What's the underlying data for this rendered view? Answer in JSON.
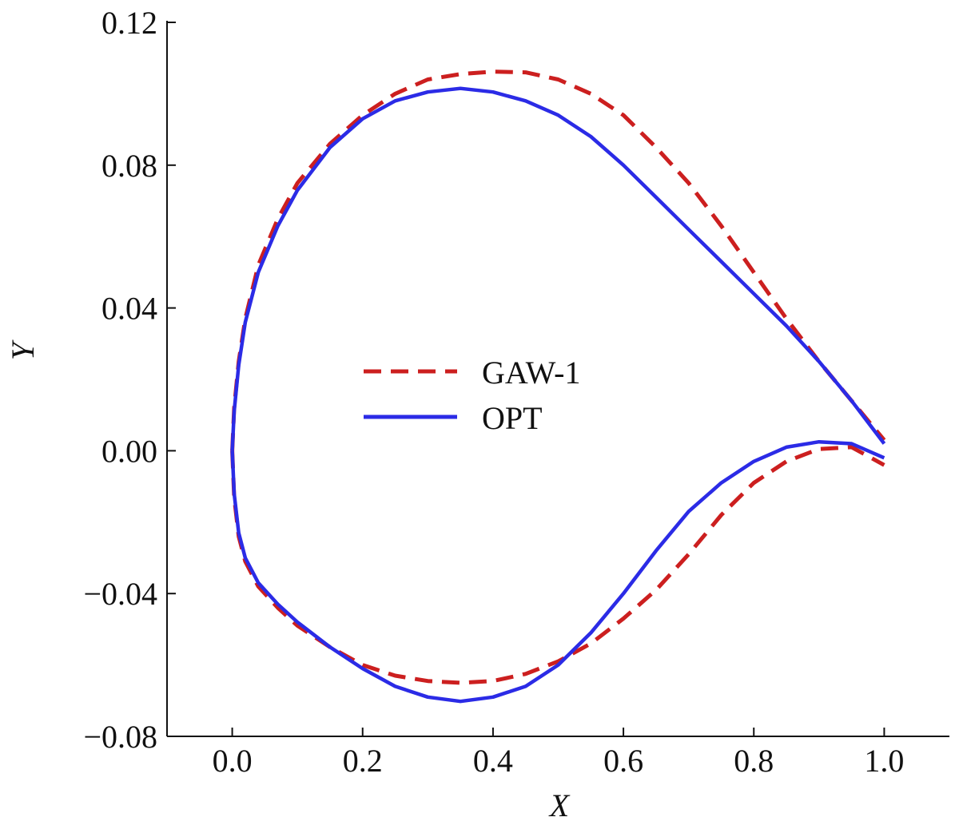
{
  "chart_data": {
    "type": "line",
    "title": "",
    "xlabel": "X",
    "ylabel": "Y",
    "xlim": [
      -0.1,
      1.1
    ],
    "ylim": [
      -0.08,
      0.12
    ],
    "grid": false,
    "legend_position": "center",
    "x_ticks": [
      0.0,
      0.2,
      0.4,
      0.6,
      0.8,
      1.0
    ],
    "x_tick_labels": [
      "0.0",
      "0.2",
      "0.4",
      "0.6",
      "0.8",
      "1.0"
    ],
    "y_ticks": [
      -0.08,
      -0.04,
      0.0,
      0.04,
      0.08,
      0.12
    ],
    "y_tick_labels": [
      "−0.08",
      "−0.04",
      "0.00",
      "0.04",
      "0.08",
      "0.12"
    ],
    "series": [
      {
        "name": "GAW-1",
        "color": "#cc1f1f",
        "style": "dashed",
        "upper": [
          [
            0.0,
            0.0
          ],
          [
            0.003,
            0.012
          ],
          [
            0.01,
            0.025
          ],
          [
            0.02,
            0.037
          ],
          [
            0.04,
            0.052
          ],
          [
            0.07,
            0.065
          ],
          [
            0.1,
            0.075
          ],
          [
            0.15,
            0.086
          ],
          [
            0.2,
            0.094
          ],
          [
            0.25,
            0.1
          ],
          [
            0.3,
            0.104
          ],
          [
            0.35,
            0.1055
          ],
          [
            0.4,
            0.1062
          ],
          [
            0.45,
            0.106
          ],
          [
            0.5,
            0.104
          ],
          [
            0.55,
            0.1
          ],
          [
            0.6,
            0.094
          ],
          [
            0.65,
            0.085
          ],
          [
            0.7,
            0.075
          ],
          [
            0.75,
            0.063
          ],
          [
            0.8,
            0.05
          ],
          [
            0.85,
            0.037
          ],
          [
            0.9,
            0.025
          ],
          [
            0.95,
            0.014
          ],
          [
            1.0,
            0.003
          ]
        ],
        "lower": [
          [
            0.0,
            0.0
          ],
          [
            0.003,
            -0.013
          ],
          [
            0.01,
            -0.024
          ],
          [
            0.02,
            -0.031
          ],
          [
            0.04,
            -0.038
          ],
          [
            0.07,
            -0.044
          ],
          [
            0.1,
            -0.049
          ],
          [
            0.15,
            -0.055
          ],
          [
            0.2,
            -0.06
          ],
          [
            0.25,
            -0.063
          ],
          [
            0.3,
            -0.0645
          ],
          [
            0.35,
            -0.065
          ],
          [
            0.4,
            -0.0645
          ],
          [
            0.45,
            -0.0625
          ],
          [
            0.5,
            -0.059
          ],
          [
            0.55,
            -0.054
          ],
          [
            0.6,
            -0.047
          ],
          [
            0.65,
            -0.039
          ],
          [
            0.7,
            -0.029
          ],
          [
            0.75,
            -0.018
          ],
          [
            0.8,
            -0.009
          ],
          [
            0.85,
            -0.003
          ],
          [
            0.9,
            0.0005
          ],
          [
            0.95,
            0.001
          ],
          [
            1.0,
            -0.004
          ]
        ]
      },
      {
        "name": "OPT",
        "color": "#2b2be6",
        "style": "solid",
        "upper": [
          [
            0.0,
            0.0
          ],
          [
            0.003,
            0.011
          ],
          [
            0.01,
            0.024
          ],
          [
            0.02,
            0.036
          ],
          [
            0.04,
            0.05
          ],
          [
            0.07,
            0.063
          ],
          [
            0.1,
            0.073
          ],
          [
            0.15,
            0.085
          ],
          [
            0.2,
            0.093
          ],
          [
            0.25,
            0.098
          ],
          [
            0.3,
            0.1005
          ],
          [
            0.35,
            0.1015
          ],
          [
            0.4,
            0.1005
          ],
          [
            0.45,
            0.098
          ],
          [
            0.5,
            0.094
          ],
          [
            0.55,
            0.088
          ],
          [
            0.6,
            0.08
          ],
          [
            0.65,
            0.071
          ],
          [
            0.7,
            0.062
          ],
          [
            0.75,
            0.053
          ],
          [
            0.8,
            0.044
          ],
          [
            0.85,
            0.035
          ],
          [
            0.9,
            0.025
          ],
          [
            0.95,
            0.014
          ],
          [
            1.0,
            0.002
          ]
        ],
        "lower": [
          [
            0.0,
            0.0
          ],
          [
            0.003,
            -0.012
          ],
          [
            0.01,
            -0.023
          ],
          [
            0.02,
            -0.03
          ],
          [
            0.04,
            -0.037
          ],
          [
            0.07,
            -0.043
          ],
          [
            0.1,
            -0.048
          ],
          [
            0.15,
            -0.055
          ],
          [
            0.2,
            -0.061
          ],
          [
            0.25,
            -0.066
          ],
          [
            0.3,
            -0.069
          ],
          [
            0.35,
            -0.0702
          ],
          [
            0.4,
            -0.069
          ],
          [
            0.45,
            -0.066
          ],
          [
            0.5,
            -0.06
          ],
          [
            0.55,
            -0.051
          ],
          [
            0.6,
            -0.04
          ],
          [
            0.65,
            -0.028
          ],
          [
            0.7,
            -0.017
          ],
          [
            0.75,
            -0.009
          ],
          [
            0.8,
            -0.003
          ],
          [
            0.85,
            0.001
          ],
          [
            0.9,
            0.0025
          ],
          [
            0.95,
            0.002
          ],
          [
            1.0,
            -0.002
          ]
        ]
      }
    ]
  }
}
